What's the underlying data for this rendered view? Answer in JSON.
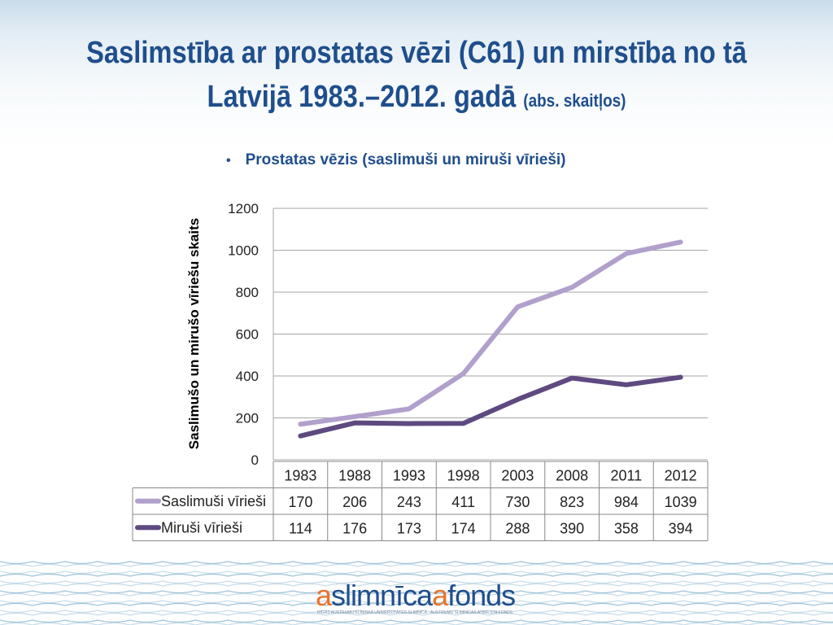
{
  "slide": {
    "title_line1": "Saslimstība ar prostatas vēzi (C61) un mirstība no tā",
    "title_line2": "Latvijā 1983.–2012. gadā",
    "title_unit": "(abs. skaitļos)",
    "bullet_symbol": "•",
    "bullet_text": "Prostatas vēzis (saslimuši un miruši vīrieši)"
  },
  "chart_data": {
    "type": "line",
    "title": "",
    "xlabel": "",
    "ylabel": "Saslimušo un mirušo vīriešu skaits",
    "ylim": [
      0,
      1200
    ],
    "yticks": [
      "0",
      "200",
      "400",
      "600",
      "800",
      "1000",
      "1200"
    ],
    "grid": true,
    "legend": "data-table-left",
    "categories": [
      "1983",
      "1988",
      "1993",
      "1998",
      "2003",
      "2008",
      "2011",
      "2012"
    ],
    "series": [
      {
        "name": "Saslimuši vīrieši",
        "color": "#b1a0cc",
        "values": [
          170,
          206,
          243,
          411,
          730,
          823,
          984,
          1039
        ]
      },
      {
        "name": "Miruši vīrieši",
        "color": "#5e4a80",
        "values": [
          114,
          176,
          173,
          174,
          288,
          390,
          358,
          394
        ]
      }
    ]
  },
  "footer": {
    "logo_part1": "a",
    "logo_part2": "slimnīca",
    "logo_part3": "a",
    "logo_part4": "fonds",
    "logo_subtitle": "RĪGAS AUSTRUMU KLĪNISKĀ UNIVERSITĀTES SLIMNĪCA · AUSTRUMU SLIMNĪCAS ATBALSTA FONDS"
  }
}
